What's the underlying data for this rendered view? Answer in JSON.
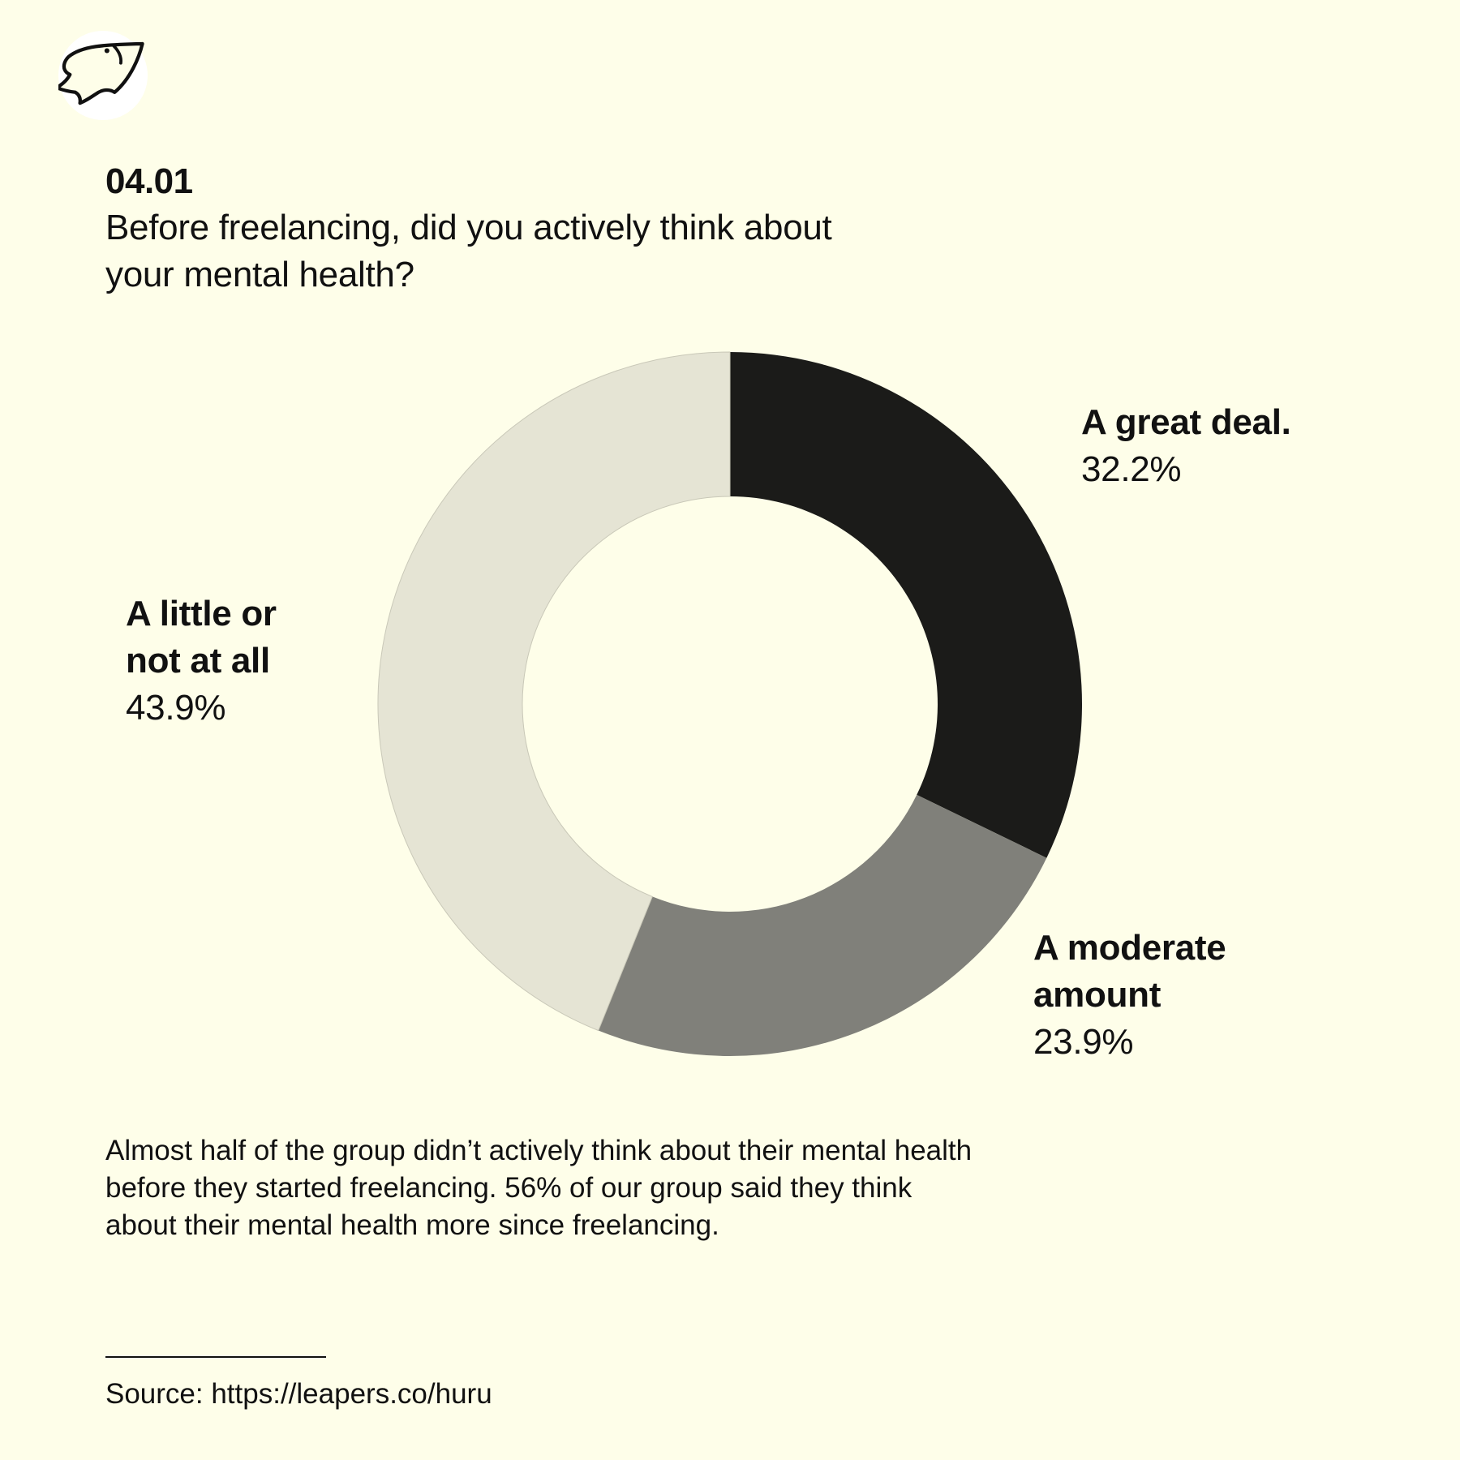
{
  "header": {
    "question_number": "04.01",
    "question_text": "Before freelancing, did you actively think about your mental health?"
  },
  "logo": {
    "icon": "fish-icon"
  },
  "chart_data": {
    "type": "pie",
    "donut": true,
    "categories": [
      "A great deal.",
      "A moderate amount",
      "A little or not at all"
    ],
    "values": [
      32.2,
      23.9,
      43.9
    ],
    "value_labels": [
      "32.2%",
      "23.9%",
      "43.9%"
    ],
    "colors": [
      "#1b1b19",
      "#80807a",
      "#e5e4d4"
    ],
    "title": "",
    "legend": "none"
  },
  "description": "Almost half of the group didn’t actively think about their mental health before they started freelancing. 56% of our group said they think about their mental health more since freelancing.",
  "source": "Source: https://leapers.co/huru",
  "colors": {
    "background": "#fefee9",
    "text": "#111111"
  }
}
